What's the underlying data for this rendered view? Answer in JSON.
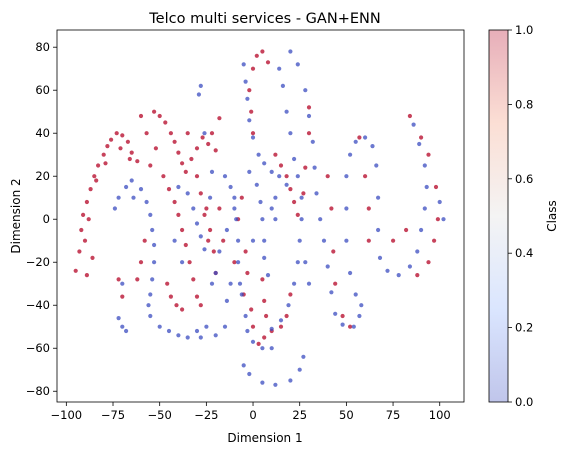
{
  "chart_data": {
    "type": "scatter",
    "title": "Telco multi services - GAN+ENN",
    "xlabel": "Dimension 1",
    "ylabel": "Dimension 2",
    "xlim": [
      -105,
      113
    ],
    "ylim": [
      -85,
      88
    ],
    "xticks": [
      -100,
      -75,
      -50,
      -25,
      0,
      25,
      50,
      75,
      100
    ],
    "yticks": [
      -80,
      -60,
      -40,
      -20,
      0,
      20,
      40,
      60,
      80
    ],
    "grid": false,
    "legend": "none",
    "colorbar": {
      "label": "Class",
      "range": [
        0.0,
        1.0
      ],
      "ticks": [
        0.0,
        0.2,
        0.4,
        0.6,
        0.8,
        1.0
      ],
      "colormap": "coolwarm",
      "alpha": 0.3
    },
    "series": [
      {
        "class": 1,
        "color": "#b40426",
        "points": [
          [
            -95,
            -24
          ],
          [
            -93,
            -15
          ],
          [
            -92,
            -5
          ],
          [
            -91,
            2
          ],
          [
            -90,
            -10
          ],
          [
            -88,
            0
          ],
          [
            -86,
            -18
          ],
          [
            -89,
            -26
          ],
          [
            -89,
            8
          ],
          [
            -87,
            14
          ],
          [
            -85,
            20
          ],
          [
            -83,
            25
          ],
          [
            -80,
            30
          ],
          [
            -78,
            34
          ],
          [
            -76,
            37
          ],
          [
            -73,
            40
          ],
          [
            -70,
            39
          ],
          [
            -67,
            36
          ],
          [
            -65,
            31
          ],
          [
            -62,
            27
          ],
          [
            -84,
            18
          ],
          [
            -79,
            26
          ],
          [
            -71,
            33
          ],
          [
            -66,
            28
          ],
          [
            -53,
            50
          ],
          [
            -50,
            48
          ],
          [
            -47,
            45
          ],
          [
            -44,
            40
          ],
          [
            -42,
            36
          ],
          [
            -40,
            31
          ],
          [
            -38,
            26
          ],
          [
            -36,
            22
          ],
          [
            -33,
            28
          ],
          [
            -30,
            33
          ],
          [
            -27,
            38
          ],
          [
            -24,
            35
          ],
          [
            -22,
            40
          ],
          [
            -20,
            32
          ],
          [
            -48,
            20
          ],
          [
            -45,
            14
          ],
          [
            -42,
            8
          ],
          [
            -40,
            2
          ],
          [
            -38,
            -5
          ],
          [
            -36,
            -12
          ],
          [
            -34,
            -20
          ],
          [
            -32,
            -28
          ],
          [
            -30,
            -36
          ],
          [
            -28,
            -40
          ],
          [
            -46,
            -30
          ],
          [
            -44,
            -36
          ],
          [
            -41,
            -40
          ],
          [
            -38,
            -42
          ],
          [
            -25,
            5
          ],
          [
            -23,
            -5
          ],
          [
            -21,
            -15
          ],
          [
            -20,
            -25
          ],
          [
            -4,
            -15
          ],
          [
            -3,
            -25
          ],
          [
            -5,
            -35
          ],
          [
            5,
            -28
          ],
          [
            6,
            -38
          ],
          [
            7,
            -45
          ],
          [
            -30,
            20
          ],
          [
            -28,
            12
          ],
          [
            -26,
            2
          ],
          [
            -24,
            -10
          ],
          [
            -6,
            10
          ],
          [
            -8,
            0
          ],
          [
            -10,
            -20
          ],
          [
            -16,
            -10
          ],
          [
            -18,
            5
          ],
          [
            -35,
            40
          ],
          [
            0,
            70
          ],
          [
            2,
            76
          ],
          [
            5,
            78
          ],
          [
            8,
            73
          ],
          [
            -2,
            60
          ],
          [
            -1,
            50
          ],
          [
            0,
            40
          ],
          [
            12,
            30
          ],
          [
            15,
            25
          ],
          [
            18,
            20
          ],
          [
            20,
            14
          ],
          [
            22,
            8
          ],
          [
            24,
            2
          ],
          [
            20,
            -35
          ],
          [
            18,
            -45
          ],
          [
            15,
            -50
          ],
          [
            10,
            -52
          ],
          [
            6,
            -55
          ],
          [
            3,
            -58
          ],
          [
            0,
            -50
          ],
          [
            -1,
            -42
          ],
          [
            27,
            12
          ],
          [
            28,
            24
          ],
          [
            30,
            40
          ],
          [
            30,
            52
          ],
          [
            40,
            20
          ],
          [
            42,
            5
          ],
          [
            43,
            -15
          ],
          [
            44,
            -30
          ],
          [
            48,
            -45
          ],
          [
            52,
            -50
          ],
          [
            57,
            38
          ],
          [
            60,
            20
          ],
          [
            62,
            5
          ],
          [
            62,
            -10
          ],
          [
            84,
            48
          ],
          [
            90,
            38
          ],
          [
            94,
            30
          ],
          [
            98,
            15
          ],
          [
            99,
            0
          ],
          [
            97,
            -10
          ],
          [
            94,
            -20
          ],
          [
            88,
            -26
          ],
          [
            82,
            -5
          ],
          [
            75,
            -10
          ],
          [
            -58,
            -10
          ],
          [
            -60,
            -20
          ],
          [
            -62,
            -28
          ],
          [
            -72,
            -28
          ],
          [
            -70,
            -36
          ],
          [
            -18,
            47
          ],
          [
            -55,
            25
          ],
          [
            -52,
            33
          ],
          [
            -57,
            40
          ],
          [
            -60,
            48
          ]
        ]
      },
      {
        "class": 0,
        "color": "#3b4cc0",
        "points": [
          [
            -60,
            14
          ],
          [
            -57,
            8
          ],
          [
            -55,
            2
          ],
          [
            -54,
            -5
          ],
          [
            -53,
            -12
          ],
          [
            -53,
            -20
          ],
          [
            -54,
            -28
          ],
          [
            -55,
            -35
          ],
          [
            -56,
            -40
          ],
          [
            -55,
            -45
          ],
          [
            -40,
            -54
          ],
          [
            -35,
            -55
          ],
          [
            -28,
            -55
          ],
          [
            -20,
            -54
          ],
          [
            -15,
            -50
          ],
          [
            -64,
            10
          ],
          [
            -65,
            18
          ],
          [
            -68,
            15
          ],
          [
            -72,
            10
          ],
          [
            -74,
            5
          ],
          [
            -72,
            -46
          ],
          [
            -70,
            -50
          ],
          [
            -68,
            -52
          ],
          [
            -40,
            15
          ],
          [
            -35,
            12
          ],
          [
            -32,
            5
          ],
          [
            -30,
            -2
          ],
          [
            -28,
            -8
          ],
          [
            -26,
            -14
          ],
          [
            -15,
            20
          ],
          [
            -12,
            15
          ],
          [
            -10,
            10
          ],
          [
            -9,
            0
          ],
          [
            -8,
            -10
          ],
          [
            -8,
            -20
          ],
          [
            -7,
            -30
          ],
          [
            -6,
            -35
          ],
          [
            -10,
            5
          ],
          [
            -14,
            -5
          ],
          [
            -18,
            -15
          ],
          [
            -20,
            -25
          ],
          [
            -22,
            -30
          ],
          [
            -2,
            22
          ],
          [
            2,
            16
          ],
          [
            4,
            8
          ],
          [
            5,
            0
          ],
          [
            6,
            -10
          ],
          [
            6,
            -18
          ],
          [
            8,
            -26
          ],
          [
            10,
            5
          ],
          [
            12,
            10
          ],
          [
            14,
            20
          ],
          [
            -5,
            72
          ],
          [
            -4,
            64
          ],
          [
            -3,
            56
          ],
          [
            -2,
            46
          ],
          [
            0,
            38
          ],
          [
            3,
            30
          ],
          [
            6,
            26
          ],
          [
            10,
            22
          ],
          [
            14,
            70
          ],
          [
            16,
            62
          ],
          [
            18,
            50
          ],
          [
            20,
            40
          ],
          [
            22,
            28
          ],
          [
            24,
            20
          ],
          [
            26,
            10
          ],
          [
            26,
            0
          ],
          [
            25,
            -10
          ],
          [
            24,
            -20
          ],
          [
            22,
            -30
          ],
          [
            19,
            -40
          ],
          [
            15,
            -47
          ],
          [
            10,
            -51
          ],
          [
            -4,
            -45
          ],
          [
            -3,
            -52
          ],
          [
            20,
            78
          ],
          [
            24,
            72
          ],
          [
            28,
            60
          ],
          [
            30,
            48
          ],
          [
            32,
            36
          ],
          [
            33,
            24
          ],
          [
            34,
            12
          ],
          [
            36,
            0
          ],
          [
            38,
            -10
          ],
          [
            40,
            -22
          ],
          [
            42,
            -34
          ],
          [
            44,
            -44
          ],
          [
            48,
            -49
          ],
          [
            54,
            -50
          ],
          [
            57,
            -45
          ],
          [
            50,
            20
          ],
          [
            50,
            5
          ],
          [
            50,
            -10
          ],
          [
            52,
            -25
          ],
          [
            55,
            -35
          ],
          [
            58,
            -40
          ],
          [
            52,
            30
          ],
          [
            55,
            36
          ],
          [
            60,
            38
          ],
          [
            64,
            34
          ],
          [
            66,
            25
          ],
          [
            67,
            10
          ],
          [
            67,
            -5
          ],
          [
            68,
            -18
          ],
          [
            72,
            -24
          ],
          [
            78,
            -26
          ],
          [
            84,
            -22
          ],
          [
            88,
            -15
          ],
          [
            90,
            -5
          ],
          [
            92,
            5
          ],
          [
            93,
            15
          ],
          [
            92,
            25
          ],
          [
            89,
            35
          ],
          [
            86,
            44
          ],
          [
            100,
            8
          ],
          [
            102,
            0
          ],
          [
            -5,
            -68
          ],
          [
            -2,
            -72
          ],
          [
            5,
            -76
          ],
          [
            12,
            -77
          ],
          [
            20,
            -75
          ],
          [
            25,
            -70
          ],
          [
            27,
            -64
          ],
          [
            0,
            -57
          ],
          [
            5,
            -60
          ],
          [
            10,
            -60
          ],
          [
            -50,
            -50
          ],
          [
            -45,
            -52
          ],
          [
            -25,
            -50
          ],
          [
            -30,
            -52
          ],
          [
            -23,
            10
          ],
          [
            -38,
            -20
          ],
          [
            -42,
            -10
          ],
          [
            28,
            -20
          ],
          [
            30,
            -30
          ],
          [
            -26,
            40
          ],
          [
            -22,
            22
          ],
          [
            -29,
            58
          ],
          [
            -28,
            62
          ],
          [
            18,
            16
          ],
          [
            12,
            0
          ],
          [
            0,
            -10
          ],
          [
            -70,
            -30
          ],
          [
            -12,
            -30
          ],
          [
            -14,
            -38
          ]
        ]
      }
    ]
  }
}
